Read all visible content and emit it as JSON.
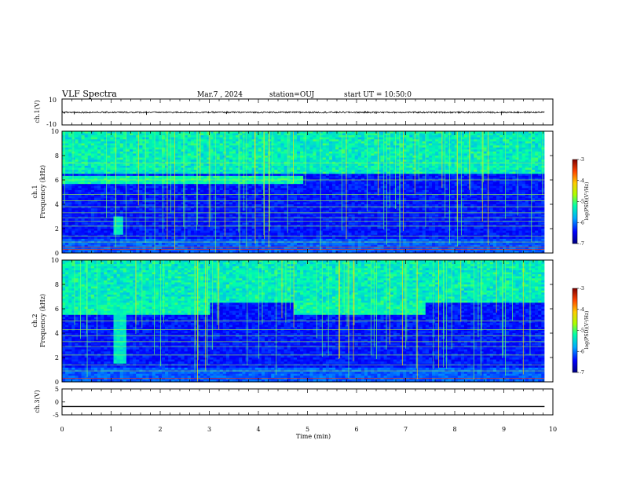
{
  "header": {
    "title": "VLF Spectra",
    "date": "Mar.7 , 2024",
    "station": "station=OUJ",
    "start_ut": "start UT = 10:50:0"
  },
  "colors": {
    "spectrogram_map": [
      "#00007f",
      "#0000ff",
      "#00aaff",
      "#00ffaa",
      "#aaff00",
      "#ffcc00",
      "#ff4400",
      "#7f0000"
    ]
  },
  "chart_data": [
    {
      "type": "line",
      "name": "ch.1 waveform",
      "ylabel": "ch.1(V)",
      "ylim": [
        -10,
        10
      ],
      "yticks": [
        "10",
        "-10"
      ],
      "xlim": [
        0,
        10
      ],
      "baseline": -0.3,
      "noise_amplitude": 0.6,
      "spikes": [
        {
          "x": 0.25,
          "y": -1.8
        },
        {
          "x": 1.72,
          "y": -2.2
        },
        {
          "x": 3.35,
          "y": -1.6
        },
        {
          "x": 4.85,
          "y": -1.2
        },
        {
          "x": 6.4,
          "y": -1.5
        },
        {
          "x": 8.95,
          "y": -2.4
        }
      ]
    },
    {
      "type": "heatmap",
      "name": "ch.1 spectrogram",
      "ylabel": "ch.1\nFrequency (kHz)",
      "ylim": [
        0,
        10
      ],
      "yticks": [
        "0",
        "2",
        "4",
        "6",
        "8",
        "10"
      ],
      "xlim": [
        0,
        10
      ],
      "data_xmax": 9.83,
      "colorbar": {
        "label": "log(PSD)(V²/Hz)",
        "range": [
          -7,
          -3
        ],
        "ticks": [
          "-3",
          "-4",
          "-5",
          "-6",
          "-7"
        ]
      },
      "hiss_band_khz": [
        5.6,
        6.3
      ],
      "hiss_time_ranges": [
        [
          0,
          4.9
        ]
      ],
      "burst": {
        "time": 1.15,
        "freq_range": [
          1.5,
          3.0
        ]
      },
      "lines_khz": [
        0.3,
        0.5,
        0.9,
        1.4,
        2.2,
        2.6,
        2.9,
        3.3,
        3.8,
        4.3,
        4.8,
        6.0,
        7.4
      ]
    },
    {
      "type": "heatmap",
      "name": "ch.2 spectrogram",
      "ylabel": "ch.2\nFrequency (kHz)",
      "ylim": [
        0,
        10
      ],
      "yticks": [
        "0",
        "2",
        "4",
        "6",
        "8",
        "10"
      ],
      "xlim": [
        0,
        10
      ],
      "data_xmax": 9.83,
      "colorbar": {
        "label": "log(PSD)(V²/Hz)",
        "range": [
          -7,
          -3
        ],
        "ticks": [
          "-3",
          "-4",
          "-5",
          "-6",
          "-7"
        ]
      },
      "hiss_band_khz": [
        5.5,
        6.5
      ],
      "hiss_time_ranges": [
        [
          0,
          3.0
        ],
        [
          4.7,
          7.4
        ]
      ],
      "burst": {
        "time": 1.2,
        "freq_range": [
          1.5,
          5.5
        ]
      },
      "lines_khz": [
        0.3,
        0.9,
        1.4,
        2.2,
        2.9,
        3.3,
        3.8,
        4.3,
        5.0
      ]
    },
    {
      "type": "line",
      "name": "ch.3 waveform",
      "ylabel": "ch.3(V)",
      "ylim": [
        -5,
        5
      ],
      "yticks": [
        "5",
        "0",
        "-5"
      ],
      "xlim": [
        0,
        10
      ],
      "baseline": -1.8,
      "noise_amplitude": 0.05
    }
  ],
  "xaxis": {
    "label": "Time (min)",
    "ticks": [
      "0",
      "1",
      "2",
      "3",
      "4",
      "5",
      "6",
      "7",
      "8",
      "9",
      "10"
    ]
  }
}
